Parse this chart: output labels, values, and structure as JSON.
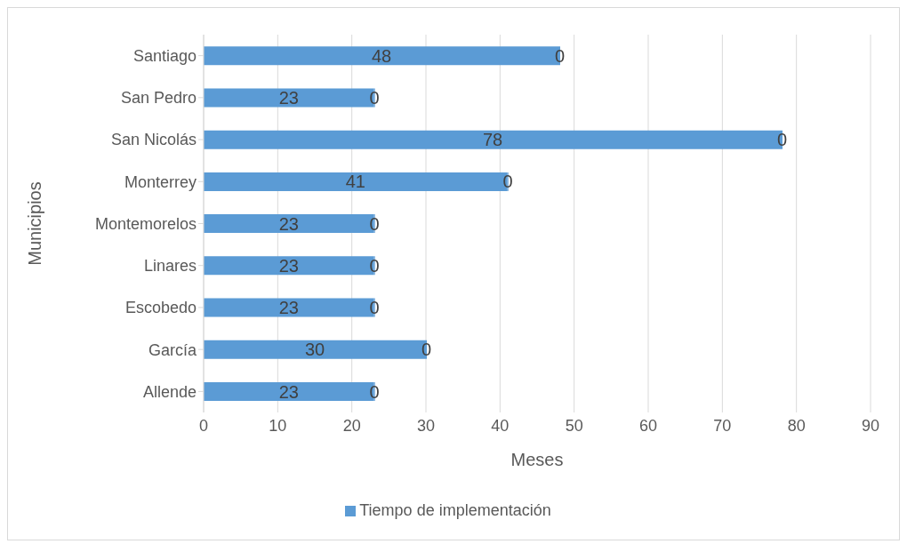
{
  "chart_data": {
    "type": "bar",
    "orientation": "horizontal",
    "stacked": true,
    "xlabel": "Meses",
    "ylabel": "Municipios",
    "categories": [
      "Santiago",
      "San Pedro",
      "San Nicolás",
      "Monterrey",
      "Montemorelos",
      "Linares",
      "Escobedo",
      "García",
      "Allende"
    ],
    "series": [
      {
        "name": "Tiempo de implementación",
        "color": "#5b9bd5",
        "values": [
          48,
          23,
          78,
          41,
          23,
          23,
          23,
          30,
          23
        ]
      },
      {
        "color": "#5b9bd5",
        "values": [
          0,
          0,
          0,
          0,
          0,
          0,
          0,
          0,
          0
        ]
      }
    ],
    "xlim": [
      0,
      90
    ],
    "xticks": [
      0,
      10,
      20,
      30,
      40,
      50,
      60,
      70,
      80,
      90
    ],
    "grid": "x",
    "legend": "bottom",
    "data_labels": true
  }
}
